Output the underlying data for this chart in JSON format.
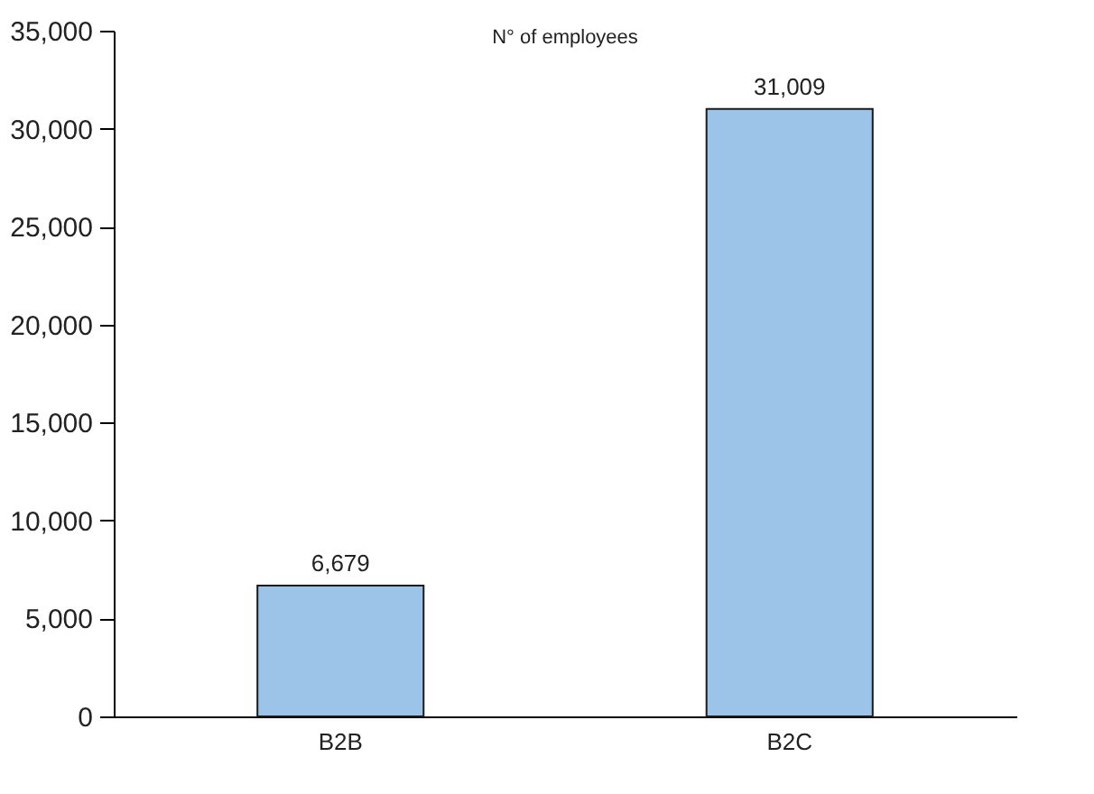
{
  "chart_data": {
    "type": "bar",
    "title": "N° of employees",
    "categories": [
      "B2B",
      "B2C"
    ],
    "values": [
      6679,
      31009
    ],
    "value_labels": [
      "6,679",
      "31,009"
    ],
    "color": "#9cc3e8",
    "ylim": [
      0,
      35000
    ],
    "yticks": [
      0,
      {
        "value": 5000,
        "label": "5,000"
      },
      {
        "value": 10000,
        "label": "10,000"
      },
      {
        "value": 15000,
        "label": "15,000"
      },
      {
        "value": 20000,
        "label": "20,000"
      },
      {
        "value": 25000,
        "label": "25,000"
      },
      {
        "value": 30000,
        "label": "30,000"
      },
      {
        "value": 35000,
        "label": "35,000"
      }
    ],
    "grid": false
  }
}
